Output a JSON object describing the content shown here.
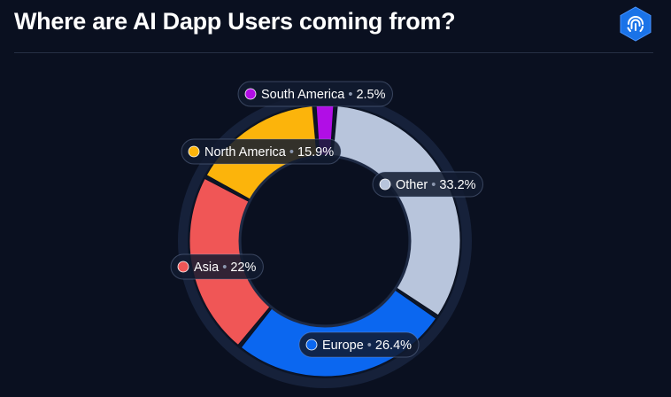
{
  "title": "Where are AI Dapp Users coming from?",
  "logo": {
    "icon": "fingerprint-icon",
    "color": "#1a73e8"
  },
  "chart_data": {
    "type": "pie",
    "title": "Where are AI Dapp Users coming from?",
    "donut": true,
    "separator": "•",
    "slices": [
      {
        "label": "South America",
        "value": 2.5,
        "display": "2.5%",
        "color": "#b10ee6"
      },
      {
        "label": "Other",
        "value": 33.2,
        "display": "33.2%",
        "color": "#b8c5dc"
      },
      {
        "label": "Europe",
        "value": 26.4,
        "display": "26.4%",
        "color": "#0b67f0"
      },
      {
        "label": "Asia",
        "value": 22,
        "display": "22%",
        "color": "#f05656"
      },
      {
        "label": "North America",
        "value": 15.9,
        "display": "15.9%",
        "color": "#fcb40b"
      }
    ]
  }
}
